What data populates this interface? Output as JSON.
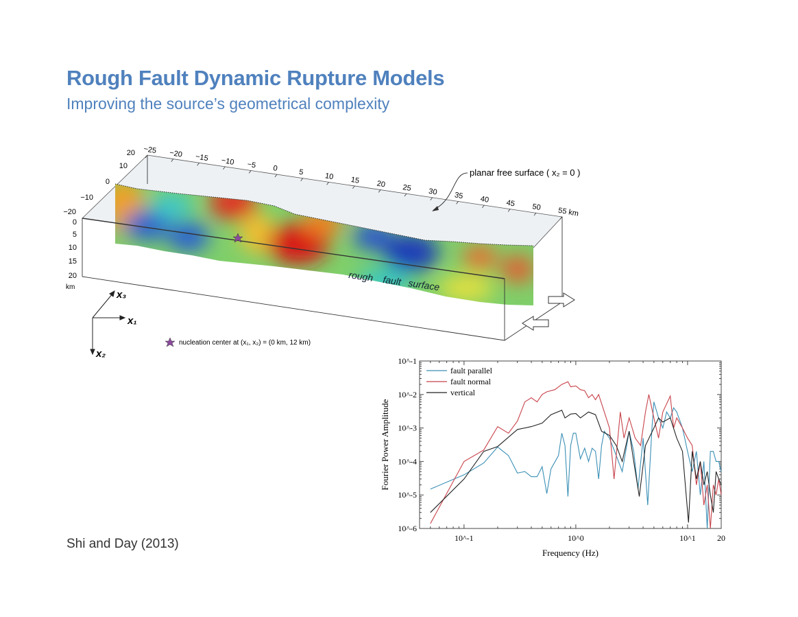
{
  "slide": {
    "title": "Rough Fault Dynamic Rupture Models",
    "subtitle": "Improving the source’s geometrical complexity",
    "citation": "Shi and Day (2013)",
    "title_color": "#4f81bd"
  },
  "diagram": {
    "x1_ticks": [
      "−25",
      "−20",
      "−15",
      "−10",
      "−5",
      "0",
      "5",
      "10",
      "15",
      "20",
      "25",
      "30",
      "35",
      "40",
      "45",
      "50",
      "55 km"
    ],
    "x3_ticks": [
      "20",
      "10",
      "0",
      "−10",
      "−20"
    ],
    "depth_ticks": [
      "0",
      "5",
      "10",
      "15",
      "20"
    ],
    "depth_unit": "km",
    "free_surface_label": "planar free surface ( x₂ = 0 )",
    "fault_label": [
      "rough",
      "fault",
      "surface"
    ],
    "axis_labels": {
      "x1": "x₁",
      "x2": "x₂",
      "x3": "x₃"
    },
    "nucleation_label": "nucleation center at (x₁, x₂) = (0 km, 12 km)",
    "star_color": "#8b4a9c"
  },
  "chart_data": {
    "type": "line",
    "xlabel": "Frequency (Hz)",
    "ylabel": "Fourier Power Amplitude",
    "xscale": "log",
    "yscale": "log",
    "xlim": [
      0.04,
      20
    ],
    "ylim": [
      1e-06,
      0.1
    ],
    "x_tick_labels": [
      "10^-1",
      "10^0",
      "10^1",
      "20"
    ],
    "y_tick_labels": [
      "10^-6",
      "10^-5",
      "10^-4",
      "10^-3",
      "10^-2",
      "10^-1"
    ],
    "legend_position": "top-left",
    "grid": false,
    "series": [
      {
        "name": "fault parallel",
        "color": "#3a8fb5",
        "points": [
          [
            0.05,
            1.5e-05
          ],
          [
            0.1,
            4e-05
          ],
          [
            0.15,
            9e-05
          ],
          [
            0.2,
            0.00027
          ],
          [
            0.25,
            0.00015
          ],
          [
            0.3,
            4.5e-05
          ],
          [
            0.35,
            5e-05
          ],
          [
            0.4,
            3.5e-05
          ],
          [
            0.45,
            3.5e-05
          ],
          [
            0.5,
            7e-05
          ],
          [
            0.55,
            1.1e-05
          ],
          [
            0.6,
            6e-05
          ],
          [
            0.7,
            0.00015
          ],
          [
            0.75,
            0.0007
          ],
          [
            0.8,
            0.0003
          ],
          [
            0.85,
            9e-06
          ],
          [
            0.9,
            0.0003
          ],
          [
            0.95,
            0.0007
          ],
          [
            1.0,
            0.0007
          ],
          [
            1.1,
            0.00012
          ],
          [
            1.2,
            0.00025
          ],
          [
            1.3,
            0.0001
          ],
          [
            1.4,
            0.00025
          ],
          [
            1.5,
            0.0002
          ],
          [
            1.6,
            3e-05
          ],
          [
            1.7,
            0.0003
          ],
          [
            1.8,
            0.0008
          ],
          [
            2.0,
            0.0005
          ],
          [
            2.3,
            0.00015
          ],
          [
            2.6,
            5e-05
          ],
          [
            3.0,
            0.0008
          ],
          [
            3.3,
            0.0002
          ],
          [
            3.6,
            1.5e-05
          ],
          [
            4.0,
            0.0005
          ],
          [
            4.4,
            5e-06
          ],
          [
            4.8,
            0.001
          ],
          [
            5.0,
            0.006
          ],
          [
            5.5,
            0.002
          ],
          [
            6.0,
            0.001
          ],
          [
            6.5,
            0.003
          ],
          [
            7.0,
            0.002
          ],
          [
            7.5,
            0.004
          ],
          [
            8.0,
            0.003
          ],
          [
            9.0,
            0.001
          ],
          [
            10,
            0.0002
          ],
          [
            11,
            5e-05
          ],
          [
            12,
            0.0002
          ],
          [
            13,
            1e-05
          ],
          [
            14,
            0.0001
          ],
          [
            15,
            1e-06
          ],
          [
            16,
            0.0002
          ],
          [
            17,
            0.0002
          ],
          [
            18,
            0.0001
          ],
          [
            19,
            0.0001
          ],
          [
            20,
            5e-05
          ]
        ]
      },
      {
        "name": "fault normal",
        "color": "#c8424a",
        "points": [
          [
            0.05,
            1.4e-06
          ],
          [
            0.1,
            0.0001
          ],
          [
            0.15,
            0.00022
          ],
          [
            0.2,
            0.0011
          ],
          [
            0.25,
            0.0007
          ],
          [
            0.3,
            0.0016
          ],
          [
            0.35,
            0.006
          ],
          [
            0.4,
            0.008
          ],
          [
            0.45,
            0.006
          ],
          [
            0.5,
            0.01
          ],
          [
            0.55,
            0.012
          ],
          [
            0.65,
            0.014
          ],
          [
            0.75,
            0.02
          ],
          [
            0.85,
            0.024
          ],
          [
            0.9,
            0.017
          ],
          [
            1.0,
            0.018
          ],
          [
            1.1,
            0.014
          ],
          [
            1.2,
            0.013
          ],
          [
            1.3,
            0.008
          ],
          [
            1.4,
            0.01
          ],
          [
            1.5,
            0.007
          ],
          [
            1.6,
            0.01
          ],
          [
            1.8,
            0.003
          ],
          [
            2.0,
            0.001
          ],
          [
            2.2,
            3e-05
          ],
          [
            2.5,
            0.003
          ],
          [
            2.7,
            0.0005
          ],
          [
            3.0,
            0.002
          ],
          [
            3.4,
            0.0005
          ],
          [
            3.8,
            0.0003
          ],
          [
            4.2,
            0.003
          ],
          [
            4.5,
            0.01
          ],
          [
            5.0,
            0.002
          ],
          [
            5.5,
            0.0005
          ],
          [
            6.0,
            0.003
          ],
          [
            7.0,
            0.009
          ],
          [
            7.5,
            0.001
          ],
          [
            8.0,
            0.002
          ],
          [
            9.0,
            0.001
          ],
          [
            10,
            0.0005
          ],
          [
            11,
            0.0003
          ],
          [
            12,
            2e-05
          ],
          [
            13,
            0.0001
          ],
          [
            14,
            5e-06
          ],
          [
            15,
            2e-05
          ],
          [
            16,
            1e-06
          ],
          [
            17,
            2e-05
          ],
          [
            18,
            1e-05
          ],
          [
            19,
            3e-05
          ],
          [
            20,
            1e-05
          ]
        ]
      },
      {
        "name": "vertical",
        "color": "#222222",
        "points": [
          [
            0.05,
            3e-06
          ],
          [
            0.1,
            3e-05
          ],
          [
            0.15,
            0.0002
          ],
          [
            0.2,
            0.00028
          ],
          [
            0.3,
            0.0009
          ],
          [
            0.4,
            0.0011
          ],
          [
            0.5,
            0.0014
          ],
          [
            0.6,
            0.0025
          ],
          [
            0.75,
            0.0034
          ],
          [
            0.8,
            0.002
          ],
          [
            0.9,
            0.0026
          ],
          [
            1.0,
            0.0027
          ],
          [
            1.1,
            0.002
          ],
          [
            1.3,
            0.003
          ],
          [
            1.5,
            0.0025
          ],
          [
            1.7,
            0.0008
          ],
          [
            2.0,
            0.0006
          ],
          [
            2.3,
            0.0003
          ],
          [
            2.6,
            0.0001
          ],
          [
            3.0,
            0.0008
          ],
          [
            3.3,
            0.0001
          ],
          [
            3.7,
            9e-06
          ],
          [
            4.2,
            0.0003
          ],
          [
            5.0,
            0.001
          ],
          [
            5.5,
            0.002
          ],
          [
            6.0,
            0.0015
          ],
          [
            7.0,
            0.002
          ],
          [
            8.0,
            0.0005
          ],
          [
            9.0,
            0.0002
          ],
          [
            10.2,
            1.5e-06
          ],
          [
            11,
            0.0002
          ],
          [
            12,
            3e-05
          ],
          [
            13,
            0.0001
          ],
          [
            14,
            2e-05
          ],
          [
            15,
            5e-05
          ],
          [
            16,
            1e-05
          ],
          [
            17,
            3e-06
          ],
          [
            18,
            5e-05
          ],
          [
            19,
            3e-05
          ],
          [
            20,
            2e-05
          ]
        ]
      }
    ]
  }
}
